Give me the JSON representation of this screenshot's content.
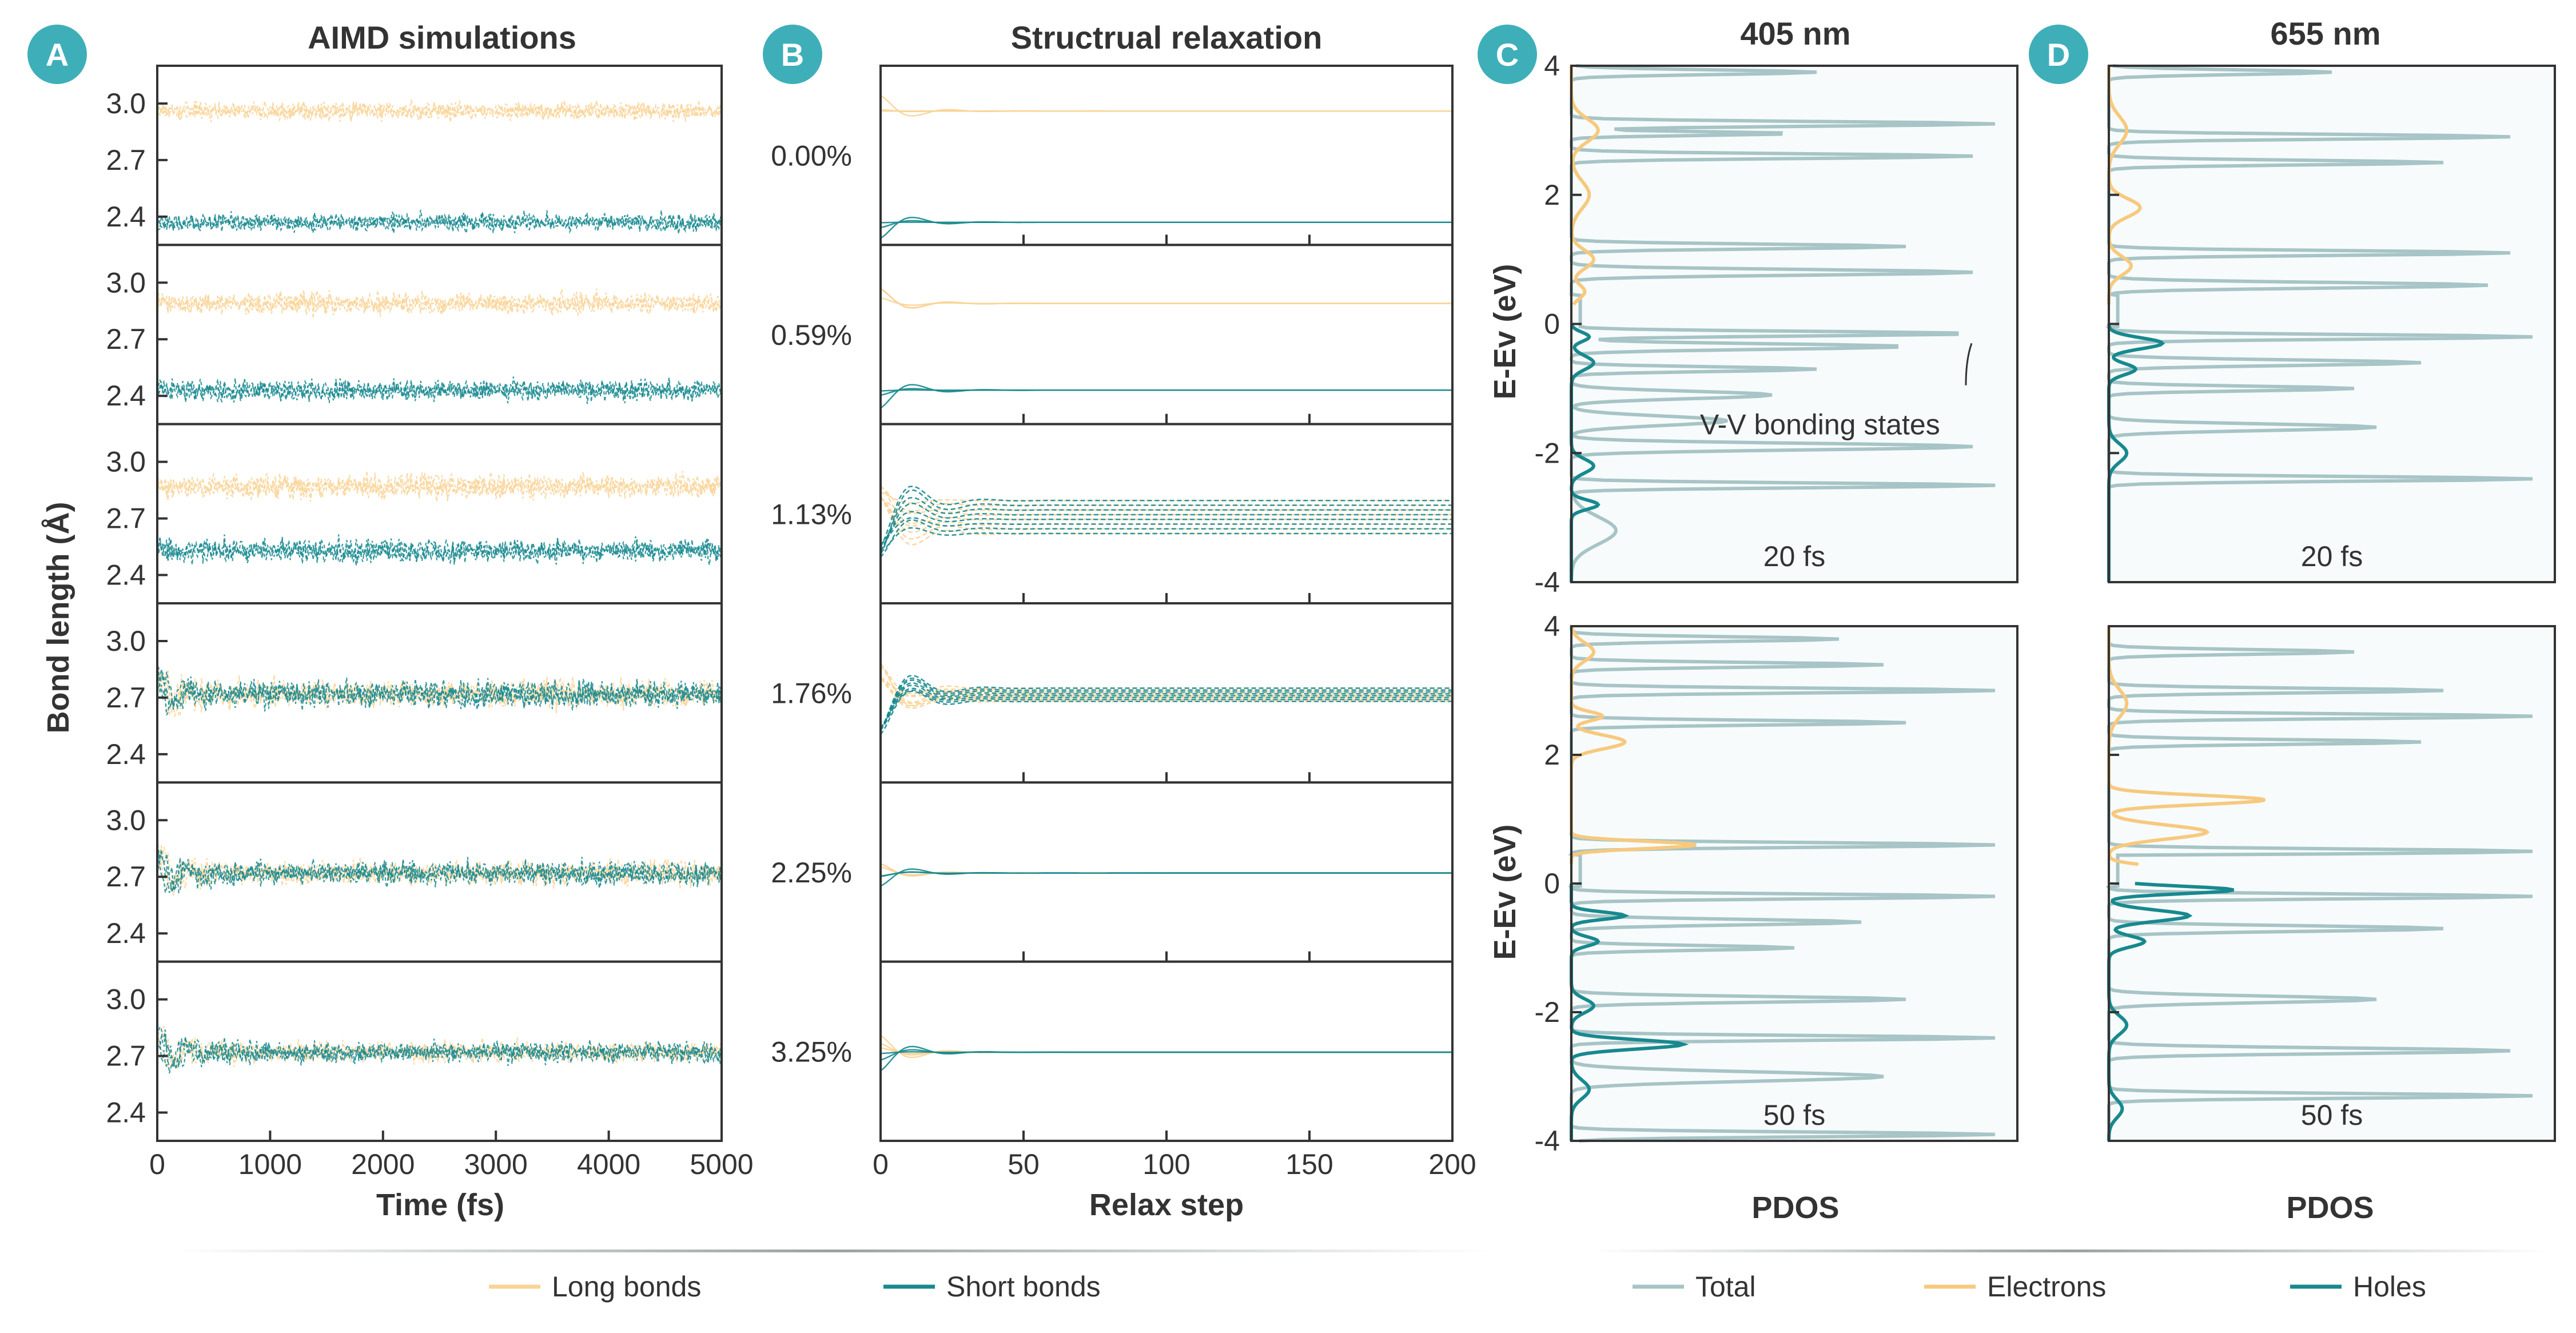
{
  "colors": {
    "long": "#F9D396",
    "short": "#17898F",
    "total": "#A7C4C6",
    "electrons": "#F7C97E",
    "holes": "#17898F",
    "badge": "#3EAFB9",
    "frame": "#333333",
    "bg_pdos": "#F7FBFB"
  },
  "panels": {
    "A": {
      "badge": "A",
      "title": "AIMD simulations",
      "xlabel": "Time (fs)",
      "ylabel": "Bond length (Å)"
    },
    "B": {
      "badge": "B",
      "title": "Structrual relaxation",
      "xlabel": "Relax step"
    },
    "C": {
      "badge": "C",
      "title": "405 nm",
      "xlabel": "PDOS",
      "ylabel": "E-Ev (eV)",
      "annotation": "V-V bonding states",
      "time_top": "20 fs",
      "time_bottom": "50 fs"
    },
    "D": {
      "badge": "D",
      "title": "655 nm",
      "xlabel": "PDOS",
      "time_top": "20 fs",
      "time_bottom": "50 fs"
    }
  },
  "legend_left": {
    "long": "Long bonds",
    "short": "Short bonds"
  },
  "legend_right": {
    "total": "Total",
    "electrons": "Electrons",
    "holes": "Holes"
  },
  "chart_data": [
    {
      "type": "line",
      "panel": "A",
      "title": "AIMD simulations",
      "xlabel": "Time (fs)",
      "ylabel": "Bond length (Å)",
      "xlim": [
        0,
        5000
      ],
      "xticks": [
        0,
        1000,
        2000,
        3000,
        4000,
        5000
      ],
      "ylim": [
        2.25,
        3.2
      ],
      "yticks": [
        2.4,
        2.7,
        3.0
      ],
      "rows": [
        {
          "long_mean": 2.96,
          "short_mean": 2.37,
          "noise": 0.06
        },
        {
          "long_mean": 2.89,
          "short_mean": 2.43,
          "noise": 0.07
        },
        {
          "long_mean": 2.87,
          "short_mean": 2.53,
          "noise": 0.08
        },
        {
          "long_mean": 2.72,
          "short_mean": 2.72,
          "noise": 0.09
        },
        {
          "long_mean": 2.72,
          "short_mean": 2.72,
          "noise": 0.08
        },
        {
          "long_mean": 2.72,
          "short_mean": 2.72,
          "noise": 0.07
        }
      ],
      "series": [
        {
          "name": "Long bonds"
        },
        {
          "name": "Short bonds"
        }
      ]
    },
    {
      "type": "line",
      "panel": "B",
      "title": "Structrual relaxation",
      "xlabel": "Relax step",
      "xlim": [
        0,
        200
      ],
      "xticks": [
        0,
        50,
        100,
        150,
        200
      ],
      "row_labels": [
        "0.00%",
        "0.59%",
        "1.13%",
        "1.76%",
        "2.25%",
        "3.25%"
      ],
      "rows": [
        {
          "long_final": 2.96,
          "short_final": 2.37,
          "spread": 0.0
        },
        {
          "long_final": 2.89,
          "short_final": 2.43,
          "spread": 0.0
        },
        {
          "long_final": 2.72,
          "short_final": 2.72,
          "spread": 0.1
        },
        {
          "long_final": 2.72,
          "short_final": 2.72,
          "spread": 0.04
        },
        {
          "long_final": 2.72,
          "short_final": 2.72,
          "spread": 0.0
        },
        {
          "long_final": 2.72,
          "short_final": 2.72,
          "spread": 0.0
        }
      ],
      "series": [
        {
          "name": "Long bonds"
        },
        {
          "name": "Short bonds"
        }
      ]
    },
    {
      "type": "line",
      "panel": "C",
      "title": "405 nm",
      "xlabel": "PDOS",
      "ylabel": "E-Ev (eV)",
      "ylim": [
        -4,
        4
      ],
      "yticks": [
        -4,
        -2,
        0,
        2,
        4
      ],
      "subplots": [
        "20 fs",
        "50 fs"
      ],
      "series": [
        {
          "name": "Total"
        },
        {
          "name": "Electrons"
        },
        {
          "name": "Holes"
        }
      ]
    },
    {
      "type": "line",
      "panel": "D",
      "title": "655 nm",
      "xlabel": "PDOS",
      "ylim": [
        -4,
        4
      ],
      "subplots": [
        "20 fs",
        "50 fs"
      ],
      "series": [
        {
          "name": "Total"
        },
        {
          "name": "Electrons"
        },
        {
          "name": "Holes"
        }
      ]
    }
  ]
}
